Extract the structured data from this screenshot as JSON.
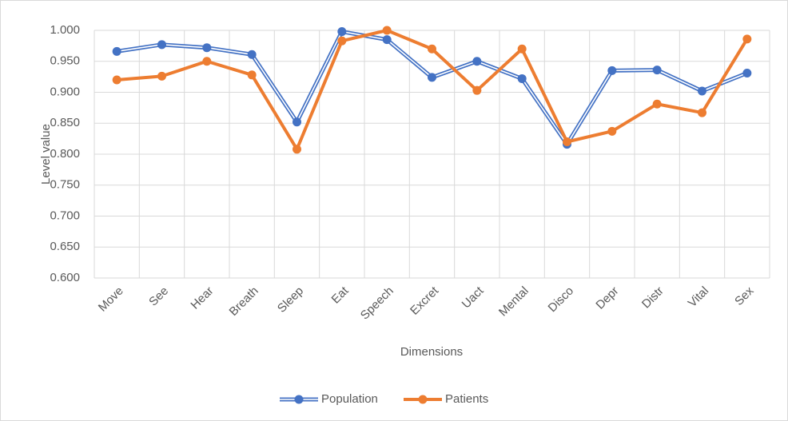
{
  "chart_data": {
    "type": "line",
    "x_label": "Dimensions",
    "y_label": "Level value",
    "categories": [
      "Move",
      "See",
      "Hear",
      "Breath",
      "Sleep",
      "Eat",
      "Speech",
      "Excret",
      "Uact",
      "Mental",
      "Disco",
      "Depr",
      "Distr",
      "Vital",
      "Sex"
    ],
    "series": [
      {
        "name": "Population",
        "color": "#4472c4",
        "values": [
          0.966,
          0.977,
          0.972,
          0.961,
          0.852,
          0.998,
          0.985,
          0.924,
          0.95,
          0.922,
          0.816,
          0.935,
          0.936,
          0.902,
          0.931
        ]
      },
      {
        "name": "Patients",
        "color": "#ed7d31",
        "values": [
          0.92,
          0.926,
          0.95,
          0.928,
          0.808,
          0.983,
          1.0,
          0.97,
          0.903,
          0.97,
          0.82,
          0.837,
          0.881,
          0.867,
          0.986
        ]
      }
    ],
    "ylim": [
      0.6,
      1.0
    ],
    "yticks": [
      {
        "value": 0.6,
        "label": "0.600"
      },
      {
        "value": 0.65,
        "label": "0.650"
      },
      {
        "value": 0.7,
        "label": "0.700"
      },
      {
        "value": 0.75,
        "label": "0.750"
      },
      {
        "value": 0.8,
        "label": "0.800"
      },
      {
        "value": 0.85,
        "label": "0.850"
      },
      {
        "value": 0.9,
        "label": "0.900"
      },
      {
        "value": 0.95,
        "label": "0.950"
      },
      {
        "value": 1.0,
        "label": "1.000"
      }
    ],
    "grid": true,
    "legend": "bottom"
  }
}
